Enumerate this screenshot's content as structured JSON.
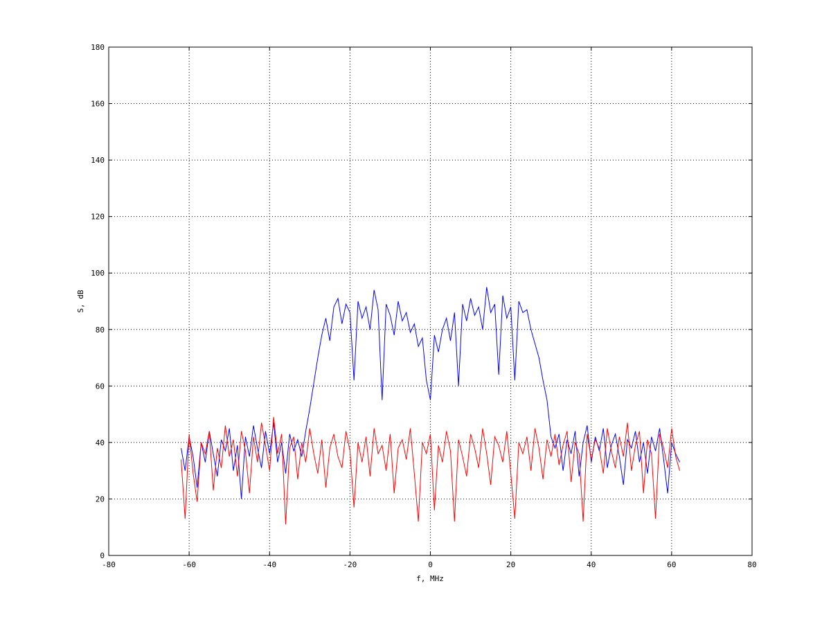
{
  "chart_data": {
    "type": "line",
    "title": "",
    "xlabel": "f, MHz",
    "ylabel": "S, dB",
    "xlim": [
      -80,
      80
    ],
    "ylim": [
      0,
      180
    ],
    "xticks": [
      -80,
      -60,
      -40,
      -20,
      0,
      20,
      40,
      60,
      80
    ],
    "yticks": [
      0,
      20,
      40,
      60,
      80,
      100,
      120,
      140,
      160,
      180
    ],
    "grid": true,
    "x": [
      -62,
      -61,
      -60,
      -59,
      -58,
      -57,
      -56,
      -55,
      -54,
      -53,
      -52,
      -51,
      -50,
      -49,
      -48,
      -47,
      -46,
      -45,
      -44,
      -43,
      -42,
      -41,
      -40,
      -39,
      -38,
      -37,
      -36,
      -35,
      -34,
      -33,
      -32,
      -31,
      -30,
      -29,
      -28,
      -27,
      -26,
      -25,
      -24,
      -23,
      -22,
      -21,
      -20,
      -19,
      -18,
      -17,
      -16,
      -15,
      -14,
      -13,
      -12,
      -11,
      -10,
      -9,
      -8,
      -7,
      -6,
      -5,
      -4,
      -3,
      -2,
      -1,
      0,
      1,
      2,
      3,
      4,
      5,
      6,
      7,
      8,
      9,
      10,
      11,
      12,
      13,
      14,
      15,
      16,
      17,
      18,
      19,
      20,
      21,
      22,
      23,
      24,
      25,
      26,
      27,
      28,
      29,
      30,
      31,
      32,
      33,
      34,
      35,
      36,
      37,
      38,
      39,
      40,
      41,
      42,
      43,
      44,
      45,
      46,
      47,
      48,
      49,
      50,
      51,
      52,
      53,
      54,
      55,
      56,
      57,
      58,
      59,
      60,
      61,
      62
    ],
    "series": [
      {
        "color": "#0000ff",
        "values": [
          38,
          30,
          42,
          35,
          24,
          40,
          33,
          44,
          36,
          28,
          41,
          37,
          45,
          30,
          39,
          20,
          42,
          35,
          46,
          38,
          31,
          44,
          36,
          47,
          33,
          40,
          29,
          43,
          37,
          41,
          35,
          44,
          52,
          61,
          70,
          78,
          84,
          76,
          88,
          91,
          82,
          89,
          86,
          62,
          90,
          84,
          88,
          80,
          94,
          87,
          55,
          89,
          85,
          78,
          90,
          83,
          86,
          79,
          82,
          74,
          77,
          62,
          55,
          78,
          72,
          80,
          84,
          76,
          86,
          60,
          89,
          83,
          91,
          85,
          88,
          80,
          95,
          86,
          89,
          64,
          92,
          84,
          88,
          62,
          90,
          86,
          87,
          80,
          75,
          70,
          62,
          55,
          42,
          38,
          43,
          30,
          41,
          36,
          44,
          28,
          40,
          46,
          33,
          42,
          37,
          45,
          31,
          39,
          43,
          35,
          25,
          41,
          38,
          44,
          33,
          40,
          29,
          42,
          37,
          45,
          34,
          22,
          40,
          36,
          33
        ]
      },
      {
        "color": "#ff0000",
        "values": [
          34,
          13,
          43,
          29,
          19,
          40,
          36,
          44,
          23,
          38,
          31,
          46,
          35,
          41,
          28,
          44,
          37,
          22,
          42,
          33,
          47,
          39,
          30,
          49,
          36,
          43,
          11,
          38,
          42,
          27,
          40,
          33,
          45,
          36,
          29,
          41,
          24,
          38,
          43,
          35,
          31,
          44,
          37,
          17,
          40,
          33,
          42,
          28,
          45,
          36,
          39,
          30,
          43,
          22,
          38,
          41,
          34,
          45,
          29,
          12,
          40,
          36,
          43,
          16,
          39,
          33,
          44,
          37,
          12,
          41,
          35,
          28,
          43,
          38,
          31,
          45,
          36,
          25,
          42,
          39,
          33,
          44,
          29,
          13,
          40,
          36,
          42,
          30,
          45,
          38,
          27,
          41,
          35,
          43,
          32,
          39,
          44,
          26,
          40,
          36,
          12,
          43,
          34,
          41,
          38,
          29,
          45,
          37,
          31,
          42,
          35,
          47,
          30,
          39,
          44,
          22,
          41,
          36,
          13,
          43,
          38,
          31,
          45,
          35,
          30
        ]
      }
    ]
  }
}
